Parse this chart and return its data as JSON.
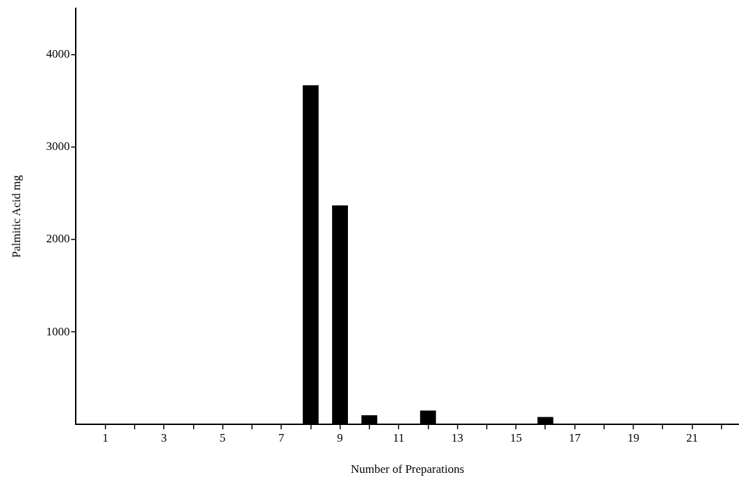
{
  "chart_data": {
    "type": "bar",
    "xlabel": "Number of Preparations",
    "ylabel": "Palmitic Acid mg",
    "x": [
      8,
      9,
      10,
      12,
      16
    ],
    "values": [
      3670,
      2370,
      100,
      150,
      80
    ],
    "color": "#000000",
    "xlim": [
      0,
      22.6
    ],
    "xticks": [
      1,
      {
        "value": 2,
        "label": null
      },
      3,
      {
        "value": 4,
        "label": null
      },
      5,
      {
        "value": 6,
        "label": null
      },
      7,
      {
        "value": 8,
        "label": null
      },
      9,
      {
        "value": 10,
        "label": null
      },
      11,
      {
        "value": 12,
        "label": null
      },
      13,
      {
        "value": 14,
        "label": null
      },
      15,
      {
        "value": 16,
        "label": null
      },
      17,
      {
        "value": 18,
        "label": null
      },
      19,
      {
        "value": 20,
        "label": null
      },
      21,
      {
        "value": 22,
        "label": null
      }
    ],
    "ylim": [
      0,
      4500
    ],
    "yticks": [
      1000,
      2000,
      3000,
      4000
    ],
    "grid": false,
    "legend": false
  }
}
